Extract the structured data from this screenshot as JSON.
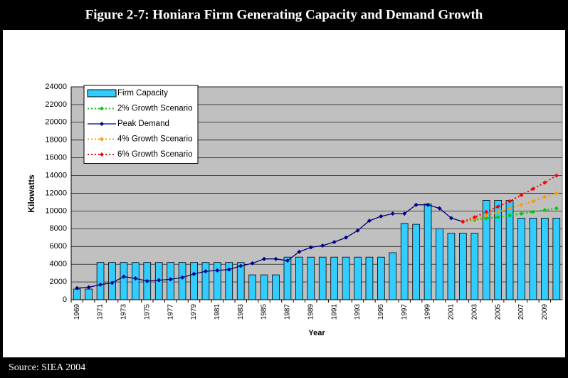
{
  "chart_data": {
    "type": "bar",
    "title": "Figure 2-7: Honiara Firm Generating Capacity and Demand Growth",
    "x_label": "Year",
    "y_label": "Kilowatts",
    "categories": [
      "1969",
      null,
      "1971",
      null,
      "1973",
      null,
      "1975",
      null,
      "1977",
      null,
      "1979",
      null,
      "1981",
      null,
      "1983",
      null,
      "1985",
      null,
      "1987",
      null,
      "1989",
      null,
      "1991",
      null,
      "1993",
      null,
      "1995",
      null,
      "1997",
      null,
      "1999",
      null,
      "2001",
      null,
      "2003",
      null,
      "2005",
      null,
      "2007",
      null,
      "2009",
      null
    ],
    "series": [
      {
        "name": "Firm Capacity",
        "type": "bar",
        "color": "#33ccff",
        "values": [
          1200,
          1200,
          4200,
          4200,
          4200,
          4200,
          4200,
          4200,
          4200,
          4200,
          4200,
          4200,
          4200,
          4200,
          4200,
          2800,
          2800,
          2800,
          4800,
          4800,
          4800,
          4800,
          4800,
          4800,
          4800,
          4800,
          4800,
          5300,
          8600,
          8500,
          10800,
          8000,
          7500,
          7500,
          7500,
          11200,
          11200,
          11200,
          9200,
          9200,
          9200,
          9200
        ]
      },
      {
        "name": "2% Growth Scenario",
        "type": "line",
        "dashed": true,
        "color": "#00cc00",
        "values": [
          null,
          null,
          null,
          null,
          null,
          null,
          null,
          null,
          null,
          null,
          null,
          null,
          null,
          null,
          null,
          null,
          null,
          null,
          null,
          null,
          null,
          null,
          null,
          null,
          null,
          null,
          null,
          null,
          null,
          null,
          null,
          null,
          null,
          8800,
          9000,
          9200,
          9300,
          9500,
          9700,
          9900,
          10100,
          10300
        ]
      },
      {
        "name": "Peak Demand",
        "type": "line",
        "dashed": false,
        "color": "#000080",
        "values": [
          1300,
          1400,
          1700,
          1900,
          2600,
          2400,
          2100,
          2200,
          2300,
          2500,
          2900,
          3200,
          3300,
          3400,
          3800,
          4100,
          4600,
          4600,
          4400,
          5400,
          5900,
          6100,
          6500,
          7000,
          7800,
          8900,
          9400,
          9700,
          9700,
          10700,
          10700,
          10300,
          9200,
          8800,
          null,
          null,
          null,
          null,
          null,
          null,
          null,
          null
        ]
      },
      {
        "name": "4% Growth Scenario",
        "type": "line",
        "dashed": true,
        "color": "#ff9900",
        "values": [
          null,
          null,
          null,
          null,
          null,
          null,
          null,
          null,
          null,
          null,
          null,
          null,
          null,
          null,
          null,
          null,
          null,
          null,
          null,
          null,
          null,
          null,
          null,
          null,
          null,
          null,
          null,
          null,
          null,
          null,
          null,
          null,
          null,
          8800,
          9150,
          9500,
          9900,
          10300,
          10700,
          11100,
          11600,
          12000
        ]
      },
      {
        "name": "6% Growth Scenario",
        "type": "line",
        "dashed": true,
        "color": "#ff0000",
        "values": [
          null,
          null,
          null,
          null,
          null,
          null,
          null,
          null,
          null,
          null,
          null,
          null,
          null,
          null,
          null,
          null,
          null,
          null,
          null,
          null,
          null,
          null,
          null,
          null,
          null,
          null,
          null,
          null,
          null,
          null,
          null,
          null,
          null,
          8800,
          9300,
          9900,
          10500,
          11100,
          11800,
          12500,
          13200,
          14000
        ]
      }
    ],
    "ylim": [
      0,
      24000
    ],
    "yticks": [
      0,
      2000,
      4000,
      6000,
      8000,
      10000,
      12000,
      14000,
      16000,
      18000,
      20000,
      22000,
      24000
    ],
    "grid": true,
    "legend": "top-left"
  },
  "source": "Source: SIEA 2004"
}
